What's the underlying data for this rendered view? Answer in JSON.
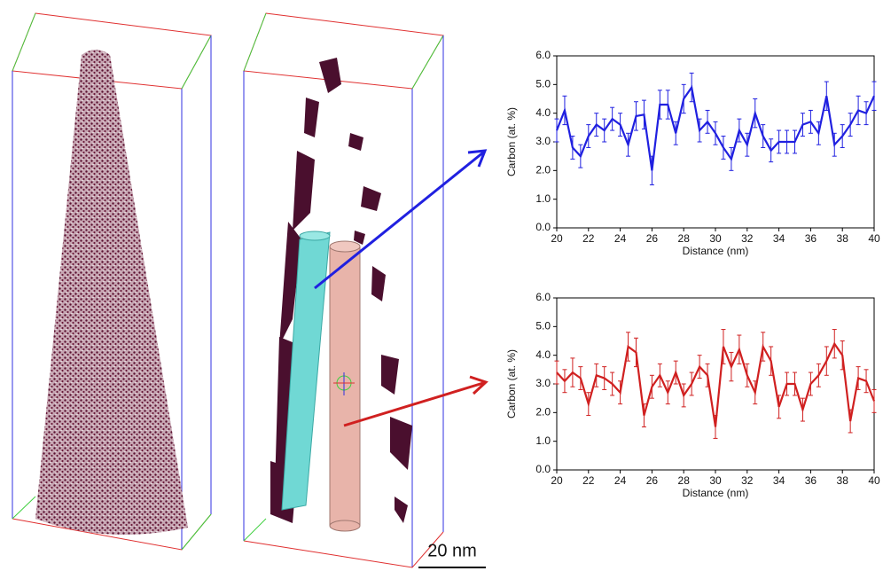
{
  "chart_data": [
    {
      "type": "line",
      "color": "#2020e0",
      "xlabel": "Distance (nm)",
      "ylabel": "Carbon (at. %)",
      "x": [
        20,
        20.5,
        21,
        21.5,
        22,
        22.5,
        23,
        23.5,
        24,
        24.5,
        25,
        25.5,
        26,
        26.5,
        27,
        27.5,
        28,
        28.5,
        29,
        29.5,
        30,
        30.5,
        31,
        31.5,
        32,
        32.5,
        33,
        33.5,
        34,
        34.5,
        35,
        35.5,
        36,
        36.5,
        37,
        37.5,
        38,
        38.5,
        39,
        39.5,
        40
      ],
      "values": [
        3.4,
        4.1,
        2.8,
        2.5,
        3.2,
        3.6,
        3.4,
        3.8,
        3.6,
        2.9,
        3.9,
        3.95,
        2.0,
        4.3,
        4.3,
        3.3,
        4.5,
        4.9,
        3.4,
        3.7,
        3.3,
        2.8,
        2.4,
        3.4,
        2.9,
        4.0,
        3.2,
        2.7,
        3.0,
        3.0,
        3.0,
        3.6,
        3.7,
        3.3,
        4.6,
        2.9,
        3.2,
        3.6,
        4.1,
        4.0,
        4.6
      ],
      "errors": [
        0.4,
        0.5,
        0.4,
        0.4,
        0.4,
        0.4,
        0.4,
        0.4,
        0.4,
        0.4,
        0.5,
        0.5,
        0.5,
        0.5,
        0.5,
        0.4,
        0.5,
        0.5,
        0.4,
        0.4,
        0.4,
        0.4,
        0.4,
        0.4,
        0.4,
        0.5,
        0.4,
        0.4,
        0.4,
        0.4,
        0.4,
        0.4,
        0.4,
        0.4,
        0.5,
        0.4,
        0.4,
        0.4,
        0.5,
        0.4,
        0.5
      ],
      "xlim": [
        20,
        40
      ],
      "xticks": [
        20,
        22,
        24,
        26,
        28,
        30,
        32,
        34,
        36,
        38,
        40
      ],
      "ylim": [
        0,
        6
      ],
      "yticks": [
        {
          "value": 0,
          "label": "0.0"
        },
        {
          "value": 1,
          "label": "1.0"
        },
        {
          "value": 2,
          "label": "2.0"
        },
        {
          "value": 3,
          "label": "3.0"
        },
        {
          "value": 4,
          "label": "4.0"
        },
        {
          "value": 5,
          "label": "5.0"
        },
        {
          "value": 6,
          "label": "6.0"
        }
      ]
    },
    {
      "type": "line",
      "color": "#d02020",
      "xlabel": "Distance (nm)",
      "ylabel": "Carbon (at. %)",
      "x": [
        20,
        20.5,
        21,
        21.5,
        22,
        22.5,
        23,
        23.5,
        24,
        24.5,
        25,
        25.5,
        26,
        26.5,
        27,
        27.5,
        28,
        28.5,
        29,
        29.5,
        30,
        30.5,
        31,
        31.5,
        32,
        32.5,
        33,
        33.5,
        34,
        34.5,
        35,
        35.5,
        36,
        36.5,
        37,
        37.5,
        38,
        38.5,
        39,
        39.5,
        40
      ],
      "values": [
        3.4,
        3.1,
        3.4,
        3.2,
        2.3,
        3.3,
        3.2,
        3.0,
        2.7,
        4.3,
        4.1,
        1.9,
        2.9,
        3.3,
        2.7,
        3.4,
        2.6,
        3.0,
        3.6,
        3.3,
        1.5,
        4.3,
        3.6,
        4.2,
        3.3,
        2.7,
        4.3,
        3.8,
        2.2,
        3.0,
        3.0,
        2.1,
        3.0,
        3.3,
        3.8,
        4.4,
        4.0,
        1.7,
        3.2,
        3.1,
        2.4
      ],
      "errors": [
        0.4,
        0.4,
        0.5,
        0.4,
        0.4,
        0.4,
        0.4,
        0.4,
        0.4,
        0.5,
        0.5,
        0.4,
        0.4,
        0.4,
        0.4,
        0.4,
        0.4,
        0.4,
        0.4,
        0.4,
        0.4,
        0.6,
        0.5,
        0.5,
        0.4,
        0.4,
        0.5,
        0.5,
        0.4,
        0.4,
        0.4,
        0.4,
        0.4,
        0.4,
        0.5,
        0.5,
        0.5,
        0.4,
        0.4,
        0.4,
        0.4
      ],
      "xlim": [
        20,
        40
      ],
      "xticks": [
        20,
        22,
        24,
        26,
        28,
        30,
        32,
        34,
        36,
        38,
        40
      ],
      "ylim": [
        0,
        6
      ],
      "yticks": [
        {
          "value": 0,
          "label": "0.0"
        },
        {
          "value": 1,
          "label": "1.0"
        },
        {
          "value": 2,
          "label": "2.0"
        },
        {
          "value": 3,
          "label": "3.0"
        },
        {
          "value": 4,
          "label": "4.0"
        },
        {
          "value": 5,
          "label": "5.0"
        },
        {
          "value": 6,
          "label": "6.0"
        }
      ]
    }
  ],
  "scale_bar_label": "20 nm"
}
